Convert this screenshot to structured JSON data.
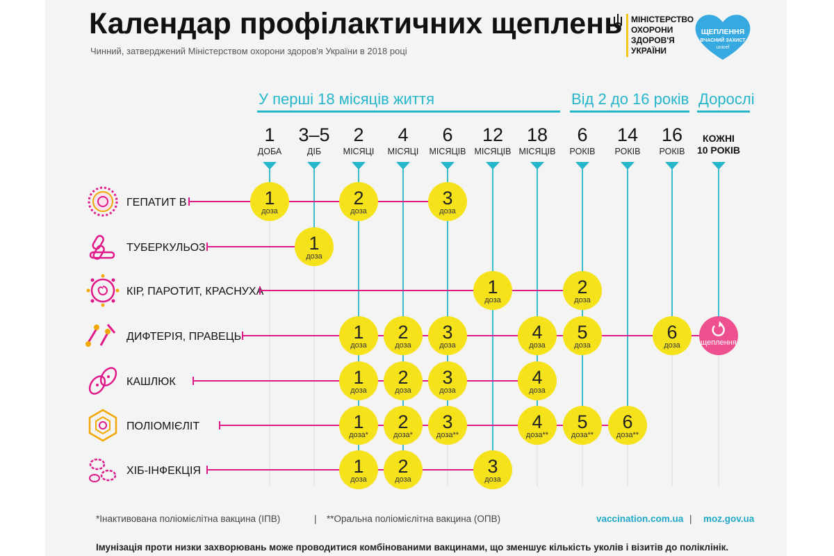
{
  "header": {
    "title": "Календар профілактичних щеплень",
    "subtitle": "Чинний, затверджений Міністерством охорони здоров'я України в 2018 році"
  },
  "logos": {
    "ministry_lines": [
      "МІНІСТЕРСТВО",
      "ОХОРОНИ",
      "ЗДОРОВ'Я",
      "УКРАЇНИ"
    ],
    "heart_lines": [
      "ЩЕПЛЕННЯ",
      "ВЧАСНИЙ ЗАХИСТ",
      "unicef"
    ]
  },
  "sections": [
    {
      "label": "У перші 18 місяців життя"
    },
    {
      "label": "Від 2 до 16 років"
    },
    {
      "label": "Дорослі"
    }
  ],
  "ages": [
    {
      "num": "1",
      "unit": "ДОБА"
    },
    {
      "num": "3–5",
      "unit": "ДІБ"
    },
    {
      "num": "2",
      "unit": "МІСЯЦІ"
    },
    {
      "num": "4",
      "unit": "МІСЯЦІ"
    },
    {
      "num": "6",
      "unit": "МІСЯЦІВ"
    },
    {
      "num": "12",
      "unit": "МІСЯЦІВ"
    },
    {
      "num": "18",
      "unit": "МІСЯЦІВ"
    },
    {
      "num": "6",
      "unit": "РОКІВ"
    },
    {
      "num": "14",
      "unit": "РОКІВ"
    },
    {
      "num": "16",
      "unit": "РОКІВ"
    },
    {
      "num": "",
      "unit": "",
      "lines": [
        "КОЖНІ",
        "10 РОКІВ"
      ]
    }
  ],
  "vaccines": [
    {
      "name": "ГЕПАТИТ В",
      "icon": "hepatitis-b-virus-icon",
      "doses": [
        {
          "col": 0,
          "num": "1",
          "label": "доза"
        },
        {
          "col": 2,
          "num": "2",
          "label": "доза"
        },
        {
          "col": 4,
          "num": "3",
          "label": "доза"
        }
      ]
    },
    {
      "name": "ТУБЕРКУЛЬОЗ",
      "icon": "tuberculosis-bacteria-icon",
      "doses": [
        {
          "col": 1,
          "num": "1",
          "label": "доза"
        }
      ]
    },
    {
      "name": "КІР, ПАРОТИТ, КРАСНУХА",
      "icon": "measles-virus-icon",
      "doses": [
        {
          "col": 5,
          "num": "1",
          "label": "доза"
        },
        {
          "col": 7,
          "num": "2",
          "label": "доза"
        }
      ]
    },
    {
      "name": "ДИФТЕРІЯ, ПРАВЕЦЬ",
      "icon": "diphtheria-tetanus-bacteria-icon",
      "doses": [
        {
          "col": 2,
          "num": "1",
          "label": "доза"
        },
        {
          "col": 3,
          "num": "2",
          "label": "доза"
        },
        {
          "col": 4,
          "num": "3",
          "label": "доза"
        },
        {
          "col": 6,
          "num": "4",
          "label": "доза"
        },
        {
          "col": 7,
          "num": "5",
          "label": "доза"
        },
        {
          "col": 9,
          "num": "6",
          "label": "доза"
        },
        {
          "col": 10,
          "num": "",
          "label": "щеплення",
          "booster": true
        }
      ]
    },
    {
      "name": "КАШЛЮК",
      "icon": "pertussis-bacteria-icon",
      "doses": [
        {
          "col": 2,
          "num": "1",
          "label": "доза"
        },
        {
          "col": 3,
          "num": "2",
          "label": "доза"
        },
        {
          "col": 4,
          "num": "3",
          "label": "доза"
        },
        {
          "col": 6,
          "num": "4",
          "label": "доза"
        }
      ]
    },
    {
      "name": "ПОЛІОМІЄЛІТ",
      "icon": "poliovirus-icon",
      "doses": [
        {
          "col": 2,
          "num": "1",
          "label": "доза",
          "mark": "*"
        },
        {
          "col": 3,
          "num": "2",
          "label": "доза",
          "mark": "*"
        },
        {
          "col": 4,
          "num": "3",
          "label": "доза",
          "mark": "**"
        },
        {
          "col": 6,
          "num": "4",
          "label": "доза",
          "mark": "**"
        },
        {
          "col": 7,
          "num": "5",
          "label": "доза",
          "mark": "**"
        },
        {
          "col": 8,
          "num": "6",
          "label": "доза",
          "mark": "**"
        }
      ]
    },
    {
      "name": "ХІБ-ІНФЕКЦІЯ",
      "icon": "hib-bacteria-icon",
      "doses": [
        {
          "col": 2,
          "num": "1",
          "label": "доза"
        },
        {
          "col": 3,
          "num": "2",
          "label": "доза"
        },
        {
          "col": 5,
          "num": "3",
          "label": "доза"
        }
      ]
    }
  ],
  "footnotes": {
    "ipv": "*Інактивована поліомієлітна вакцина (ІПВ)",
    "separator": "|",
    "opv": "**Оральна поліомієлітна вакцина (ОПВ)",
    "link1": "vaccination.com.ua",
    "link2": "moz.gov.ua"
  },
  "bottom_note": "Імунізація проти низки захворювань може проводитися комбінованими вакцинами, що зменшує кількість уколів і візитів до поліклінік.",
  "colors": {
    "accent": "#25b6cc",
    "line": "#e0198a",
    "dose": "#f6e21a",
    "booster": "#ee4f8f",
    "heart": "#36a9e1"
  }
}
